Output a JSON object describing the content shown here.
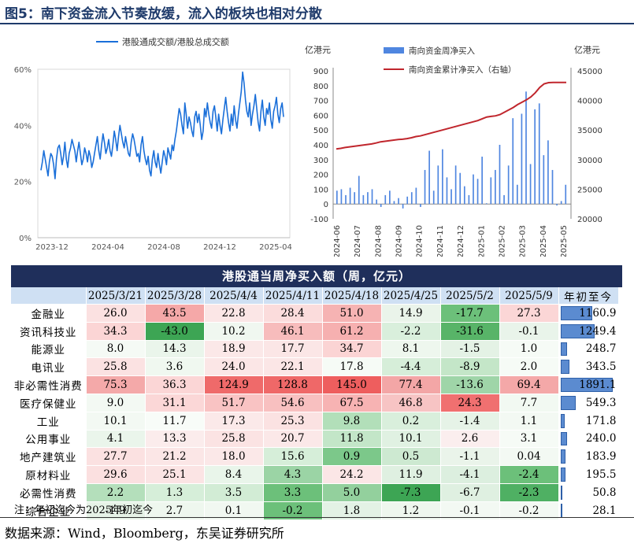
{
  "title": "图5：南下资金流入节奏放缓，流入的板块也相对分散",
  "chart_data": [
    {
      "type": "line",
      "series": [
        {
          "name": "港股通成交额/港股总成交额",
          "color": "#1a6fd9"
        }
      ],
      "x_ticks": [
        "2023-12",
        "2024-04",
        "2024-08",
        "2024-12",
        "2025-04"
      ],
      "y_ticks": [
        "0%",
        "20%",
        "40%",
        "60%"
      ],
      "ylim": [
        0,
        60
      ],
      "values": [
        24,
        27,
        31,
        28,
        25,
        22,
        27,
        30,
        29,
        26,
        21,
        28,
        32,
        33,
        30,
        26,
        29,
        34,
        28,
        25,
        30,
        32,
        35,
        33,
        31,
        27,
        31,
        34,
        30,
        26,
        28,
        32,
        30,
        27,
        31,
        29,
        25,
        27,
        30,
        33,
        36,
        31,
        28,
        33,
        37,
        34,
        30,
        32,
        35,
        31,
        29,
        33,
        38,
        35,
        31,
        36,
        40,
        37,
        34,
        32,
        36,
        33,
        30,
        29,
        34,
        37,
        35,
        32,
        29,
        30,
        27,
        33,
        36,
        31,
        28,
        26,
        29,
        24,
        22,
        28,
        31,
        27,
        25,
        30,
        26,
        23,
        27,
        31,
        29,
        26,
        32,
        30,
        28,
        33,
        31,
        35,
        38,
        42,
        46,
        44,
        40,
        37,
        48,
        44,
        39,
        43,
        41,
        38,
        36,
        43,
        45,
        41,
        44,
        40,
        35,
        38,
        46,
        43,
        48,
        44,
        41,
        39,
        45,
        47,
        43,
        38,
        44,
        40,
        37,
        42,
        46,
        50,
        45,
        41,
        38,
        44,
        40,
        47,
        42,
        39,
        44,
        48,
        52,
        59,
        55,
        49,
        45,
        43,
        48,
        40,
        44,
        47,
        51,
        46,
        41,
        38,
        45,
        49,
        43,
        40,
        46,
        44,
        48,
        42,
        39,
        45,
        47,
        50,
        44,
        41,
        46,
        48,
        43
      ],
      "xlabel": "",
      "ylabel": "",
      "legend": "top"
    },
    {
      "type": "bar+line",
      "left_unit": "亿港元",
      "right_unit": "亿港元",
      "y_left_ticks": [
        "-100",
        "0",
        "100",
        "200",
        "300",
        "400",
        "500",
        "600",
        "700",
        "800",
        "900"
      ],
      "y_right_ticks": [
        "20000",
        "25000",
        "30000",
        "35000",
        "40000",
        "45000"
      ],
      "ylim_left": [
        -100,
        900
      ],
      "ylim_right": [
        20000,
        45000
      ],
      "x_ticks": [
        "2024-06",
        "2024-07",
        "2024-08",
        "2024-09",
        "2024-10",
        "2024-11",
        "2024-12",
        "2025-01",
        "2025-02",
        "2025-03",
        "2025-04",
        "2025-05"
      ],
      "series": [
        {
          "name": "南向资金周净买入",
          "kind": "bar",
          "color": "#4f86e0",
          "values": [
            90,
            100,
            60,
            110,
            80,
            190,
            60,
            80,
            100,
            30,
            -20,
            60,
            90,
            20,
            40,
            -30,
            50,
            80,
            110,
            -20,
            230,
            360,
            90,
            260,
            370,
            180,
            100,
            260,
            210,
            120,
            60,
            200,
            170,
            320,
            5,
            180,
            230,
            400,
            60,
            260,
            580,
            130,
            610,
            760,
            270,
            640,
            680,
            330,
            430,
            230,
            -10,
            20,
            130
          ]
        },
        {
          "name": "南向资金累计净买入（右轴）",
          "kind": "line",
          "color": "#c0262d",
          "values": [
            31800,
            31900,
            32050,
            32150,
            32250,
            32350,
            32450,
            32550,
            32650,
            32800,
            33000,
            33100,
            33200,
            33300,
            33400,
            33450,
            33550,
            33700,
            33900,
            34000,
            34200,
            34400,
            34600,
            34800,
            35000,
            35200,
            35400,
            35600,
            35800,
            36000,
            36200,
            36400,
            36600,
            36900,
            37200,
            37300,
            37400,
            37600,
            38000,
            38400,
            38800,
            39300,
            39700,
            40100,
            40600,
            41300,
            42200,
            42800,
            43000,
            43050,
            43050,
            43050,
            43050
          ]
        }
      ],
      "legend": "top-left"
    },
    {
      "type": "table",
      "title": "港股通当周净买入额（周，亿元）",
      "columns": [
        "2025/3/21",
        "2025/3/28",
        "2025/4/4",
        "2025/4/11",
        "2025/4/18",
        "2025/4/25",
        "2025/5/2",
        "2025/5/9",
        "年初至今"
      ],
      "rows": [
        {
          "label": "金融业",
          "values": [
            "26.0",
            "43.5",
            "22.8",
            "28.4",
            "51.0",
            "14.9",
            "-17.7",
            "27.3"
          ],
          "ytd": "1160.9",
          "ytd_value": 1160.9
        },
        {
          "label": "资讯科技业",
          "values": [
            "34.3",
            "-43.0",
            "10.2",
            "46.1",
            "61.2",
            "-2.2",
            "-31.6",
            "-0.1"
          ],
          "ytd": "1249.4",
          "ytd_value": 1249.4
        },
        {
          "label": "能源业",
          "values": [
            "8.0",
            "14.3",
            "18.9",
            "17.7",
            "34.7",
            "8.1",
            "-1.5",
            "1.0"
          ],
          "ytd": "248.7",
          "ytd_value": 248.7
        },
        {
          "label": "电讯业",
          "values": [
            "25.8",
            "3.6",
            "24.0",
            "22.1",
            "17.8",
            "-4.4",
            "-8.9",
            "2.0"
          ],
          "ytd": "343.5",
          "ytd_value": 343.5
        },
        {
          "label": "非必需性消费",
          "values": [
            "75.3",
            "36.3",
            "124.9",
            "128.8",
            "145.0",
            "77.4",
            "-13.6",
            "69.4"
          ],
          "ytd": "1891.1",
          "ytd_value": 1891.1
        },
        {
          "label": "医疗保健业",
          "values": [
            "9.0",
            "31.1",
            "51.7",
            "54.6",
            "67.5",
            "46.8",
            "24.3",
            "7.7"
          ],
          "ytd": "549.3",
          "ytd_value": 549.3
        },
        {
          "label": "工业",
          "values": [
            "10.1",
            "11.7",
            "17.3",
            "25.3",
            "9.8",
            "0.2",
            "-1.4",
            "1.1"
          ],
          "ytd": "171.8",
          "ytd_value": 171.8
        },
        {
          "label": "公用事业",
          "values": [
            "4.1",
            "13.3",
            "25.8",
            "20.7",
            "11.8",
            "10.1",
            "2.6",
            "3.1"
          ],
          "ytd": "240.0",
          "ytd_value": 240.0
        },
        {
          "label": "地产建筑业",
          "values": [
            "27.7",
            "21.2",
            "18.0",
            "15.6",
            "0.9",
            "0.5",
            "-1.1",
            "0.04"
          ],
          "ytd": "183.9",
          "ytd_value": 183.9
        },
        {
          "label": "原材料业",
          "values": [
            "29.6",
            "25.1",
            "8.4",
            "4.3",
            "24.2",
            "11.9",
            "-4.1",
            "-2.4"
          ],
          "ytd": "195.5",
          "ytd_value": 195.5
        },
        {
          "label": "必需性消费",
          "values": [
            "2.2",
            "1.3",
            "3.5",
            "3.3",
            "5.0",
            "-7.3",
            "-6.7",
            "-2.3"
          ],
          "ytd": "50.8",
          "ytd_value": 50.8
        },
        {
          "label": "综合企业",
          "values": [
            "-1.9",
            "2.7",
            "0.1",
            "-0.2",
            "1.8",
            "1.2",
            "-0.1",
            "-0.2"
          ],
          "ytd": "28.1",
          "ytd_value": 28.1
        }
      ],
      "cell_colors": [
        [
          "#fbe1e1",
          "#f5a8a8",
          "#fbe6e6",
          "#fbdcdc",
          "#f6b3b3",
          "#eaf4ea",
          "#6cc07a",
          "#fbd6d6"
        ],
        [
          "#fbd5d5",
          "#3da554",
          "#f0f7f0",
          "#f7bcbc",
          "#f6b0b0",
          "#d9efdc",
          "#58b468",
          "#e9f4ea"
        ],
        [
          "#f5faf5",
          "#eaf5eb",
          "#fbe8e8",
          "#fbe6e6",
          "#fbd4d4",
          "#eef7ee",
          "#e4f2e5",
          "#f6fbf6"
        ],
        [
          "#fbe2e2",
          "#f0f8f0",
          "#fbe6e6",
          "#fbe6e6",
          "#f6fbf6",
          "#d6eed9",
          "#c4e6c8",
          "#f6fbf6"
        ],
        [
          "#f4a9a9",
          "#fbd6d6",
          "#ef6a6a",
          "#ef6868",
          "#ee5e5e",
          "#f3a6a6",
          "#9fd5a8",
          "#f4a8a8"
        ],
        [
          "#f3f9f3",
          "#fbd7d7",
          "#f9c3c3",
          "#f8c0c0",
          "#f7b3b3",
          "#f7c4c4",
          "#f07070",
          "#f2f9f2"
        ],
        [
          "#f3f9f3",
          "#f8fcf8",
          "#fbe9e9",
          "#fbe2e2",
          "#b2dfb9",
          "#d9efdc",
          "#e6f3e7",
          "#f3f9f3"
        ],
        [
          "#eaf5eb",
          "#fbecec",
          "#fbe3e3",
          "#fbe8e8",
          "#c3e6c8",
          "#e0f1e2",
          "#fbeeee",
          "#f6fbf6"
        ],
        [
          "#fbe1e1",
          "#fbe6e6",
          "#fbe8e8",
          "#d6eed9",
          "#7cc88a",
          "#cde9d1",
          "#eaf4ea",
          "#f3f9f3"
        ],
        [
          "#fbe0e0",
          "#fbe4e4",
          "#e9f5ea",
          "#9bd4a5",
          "#fbe6e6",
          "#dff0e1",
          "#dcefdf",
          "#6cc07a"
        ],
        [
          "#b4dfbb",
          "#d6eed9",
          "#d2ecd5",
          "#6cc07a",
          "#93d09d",
          "#3da554",
          "#dff0e1",
          "#4fb063"
        ],
        [
          "#e6f3e7",
          "#eef7ee",
          "#f1f8f1",
          "#6cc07a",
          "#e3f2e5",
          "#eef7ee",
          "#f3f9f3",
          "#f3f9f3"
        ]
      ],
      "ytd_max": 1891.1
    }
  ],
  "note": "注：年初迄今为2025年初迄今",
  "source": "数据来源：Wind，Bloomberg，东吴证券研究所"
}
